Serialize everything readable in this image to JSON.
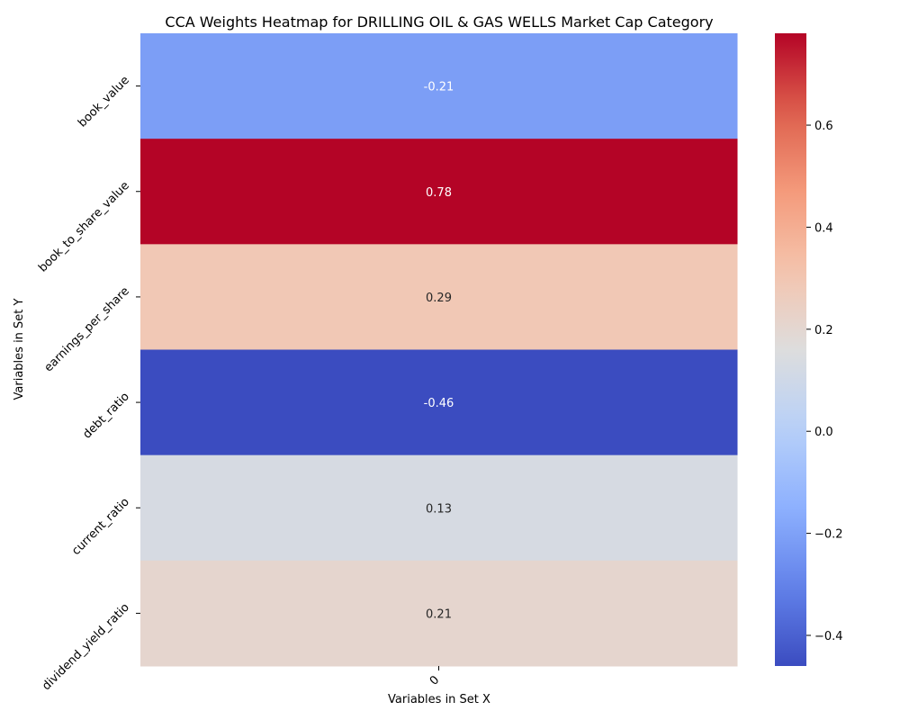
{
  "chart_data": {
    "type": "heatmap",
    "title": "CCA Weights Heatmap for DRILLING OIL & GAS WELLS Market Cap Category",
    "xlabel": "Variables in Set X",
    "ylabel": "Variables in Set Y",
    "x_categories": [
      "0"
    ],
    "y_categories": [
      "book_value",
      "book_to_share_value",
      "earnings_per_share",
      "debt_ratio",
      "current_ratio",
      "dividend_yield_ratio"
    ],
    "values": [
      [
        -0.21
      ],
      [
        0.78
      ],
      [
        0.29
      ],
      [
        -0.46
      ],
      [
        0.13
      ],
      [
        0.21
      ]
    ],
    "value_labels": [
      "-0.21",
      "0.78",
      "0.29",
      "-0.46",
      "0.13",
      "0.21"
    ],
    "colorbar": {
      "colormap": "coolwarm",
      "vmin": -0.46,
      "vmax": 0.78,
      "ticks": [
        -0.4,
        -0.2,
        0.0,
        0.2,
        0.4,
        0.6
      ],
      "tick_labels": [
        "−0.4",
        "−0.2",
        "0.0",
        "0.2",
        "0.4",
        "0.6"
      ]
    }
  }
}
